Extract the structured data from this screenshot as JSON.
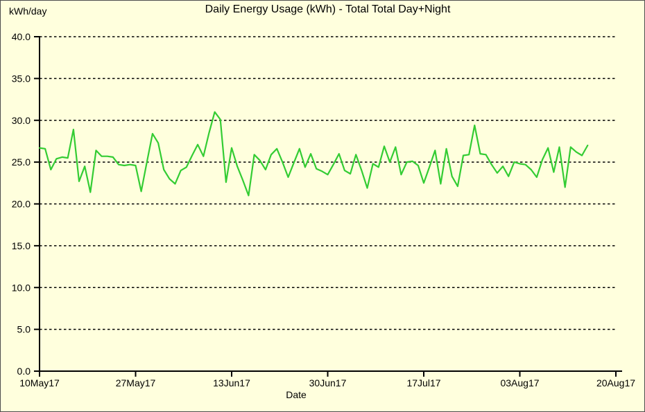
{
  "window": {
    "background_color": "#ffffdd",
    "border_color": "#4d4d4d"
  },
  "chart_data": {
    "type": "line",
    "title": "Daily Energy Usage (kWh) - Total Total Day+Night",
    "xlabel": "Date",
    "ylabel": "kWh/day",
    "ylim": [
      0,
      40
    ],
    "y_tick_step": 5,
    "y_tick_labels": [
      "0.0",
      "5.0",
      "10.0",
      "15.0",
      "20.0",
      "25.0",
      "30.0",
      "35.0",
      "40.0"
    ],
    "x_tick_labels": [
      "10May17",
      "27May17",
      "13Jun17",
      "30Jun17",
      "17Jul17",
      "03Aug17",
      "20Aug17"
    ],
    "x_tick_days": [
      0,
      17,
      34,
      51,
      68,
      85,
      102
    ],
    "grid": "horizontal-dashed",
    "grid_color": "#000000",
    "axis_color": "#000000",
    "legend_position": "none",
    "line_color": "#33cc33",
    "series": [
      {
        "name": "Total Total Day+Night",
        "unit": "kWh/day",
        "start_label": "10May17",
        "day_interval": 1,
        "values": [
          26.7,
          26.6,
          24.1,
          25.4,
          25.6,
          25.5,
          28.9,
          22.7,
          24.5,
          21.4,
          26.4,
          25.7,
          25.7,
          25.6,
          24.7,
          24.6,
          24.7,
          24.6,
          21.5,
          25.0,
          28.4,
          27.3,
          24.1,
          23.0,
          22.4,
          24.0,
          24.4,
          25.8,
          27.1,
          25.7,
          28.5,
          31.0,
          30.1,
          22.6,
          26.7,
          24.5,
          22.8,
          21.0,
          25.9,
          25.2,
          24.1,
          25.9,
          26.6,
          25.0,
          23.2,
          24.9,
          26.6,
          24.4,
          26.0,
          24.2,
          23.9,
          23.5,
          24.7,
          26.0,
          24.0,
          23.6,
          25.9,
          24.0,
          21.9,
          24.8,
          24.4,
          26.9,
          25.0,
          26.8,
          23.5,
          25.0,
          25.1,
          24.6,
          22.5,
          24.4,
          26.4,
          22.4,
          26.6,
          23.3,
          22.1,
          25.8,
          25.9,
          29.4,
          26.0,
          25.9,
          24.7,
          23.7,
          24.5,
          23.3,
          25.0,
          24.8,
          24.7,
          24.1,
          23.2,
          25.3,
          26.7,
          23.8,
          26.8,
          22.0,
          26.8,
          26.2,
          25.8,
          27.0
        ]
      }
    ]
  }
}
